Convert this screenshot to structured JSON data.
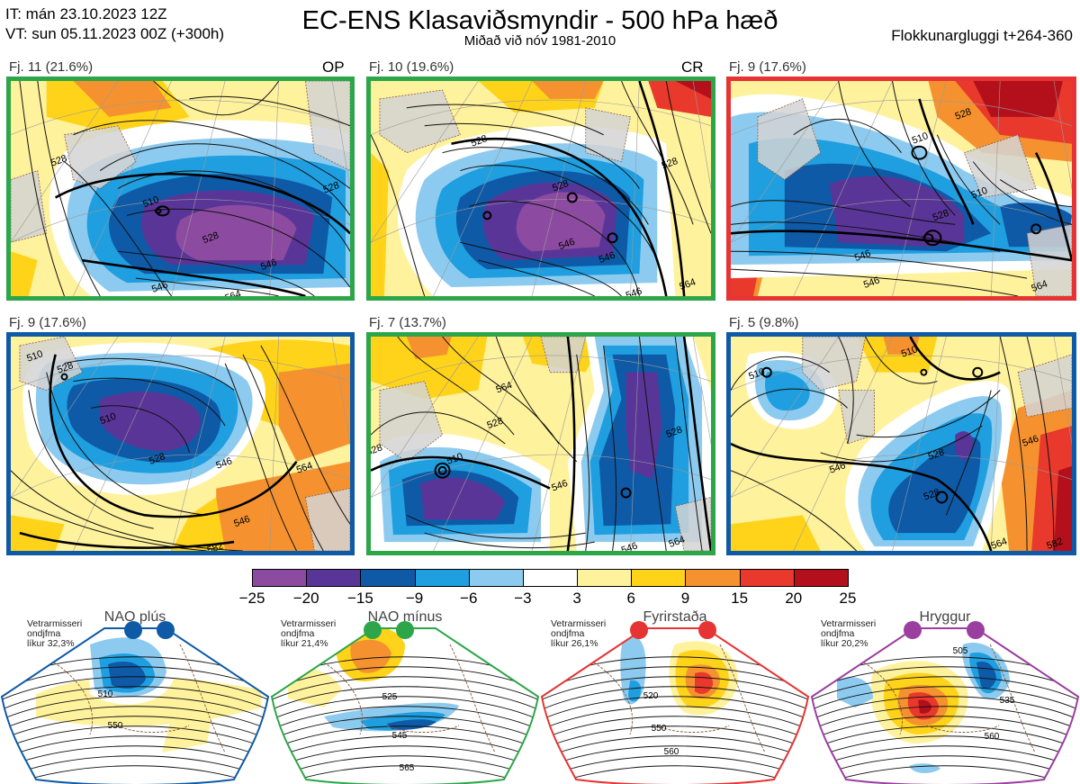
{
  "header": {
    "init_time": "IT: mán 23.10.2023 12Z",
    "valid_time": "VT: sun 05.11.2023 00Z  (+300h)",
    "title": "EC-ENS Klasaviðsmyndir - 500 hPa hæð",
    "subtitle": "Miðað við nóv 1981-2010",
    "window": "Flokkunargluggi t+264-360"
  },
  "panels": [
    {
      "label": "Fj. 11 (21.6%)",
      "tag": "OP",
      "border_color": "#2ca649",
      "contour_labels": [
        "528",
        "510",
        "528",
        "546",
        "528",
        "546",
        "564"
      ]
    },
    {
      "label": "Fj. 10 (19.6%)",
      "tag": "CR",
      "border_color": "#2ca649",
      "contour_labels": [
        "528",
        "528",
        "546",
        "546",
        "528",
        "546",
        "564"
      ]
    },
    {
      "label": "Fj. 9 (17.6%)",
      "tag": "",
      "border_color": "#e63333",
      "contour_labels": [
        "510",
        "528",
        "546",
        "510",
        "528",
        "546",
        "564"
      ]
    },
    {
      "label": "Fj. 9 (17.6%)",
      "tag": "",
      "border_color": "#0e5aa7",
      "contour_labels": [
        "510",
        "528",
        "510",
        "528",
        "546",
        "546",
        "564",
        "582"
      ]
    },
    {
      "label": "Fj. 7 (13.7%)",
      "tag": "",
      "border_color": "#2ca649",
      "contour_labels": [
        "528",
        "510",
        "528",
        "546",
        "528",
        "546",
        "564",
        "564"
      ]
    },
    {
      "label": "Fj. 5 (9.8%)",
      "tag": "",
      "border_color": "#0e5aa7",
      "contour_labels": [
        "510",
        "510",
        "528",
        "546",
        "528",
        "546",
        "564",
        "582"
      ]
    }
  ],
  "colorbar": {
    "colors": [
      "#8c4ba0",
      "#5a3598",
      "#0e5aa7",
      "#1f9ee0",
      "#8ccbef",
      "#ffffff",
      "#fff29c",
      "#ffd31a",
      "#f5922f",
      "#e8392c",
      "#b3101b"
    ],
    "ticks": [
      "−25",
      "−20",
      "−15",
      "−9",
      "−6",
      "−3",
      "3",
      "6",
      "9",
      "15",
      "20",
      "25"
    ]
  },
  "regimes": [
    {
      "name": "NAO plús",
      "stat_line1": "Vetrarmisseri",
      "stat_line2": "ondjfma",
      "stat_line3": "líkur 32,3%",
      "color": "#0e5aa7",
      "contour_labels": [
        "510",
        "550"
      ]
    },
    {
      "name": "NAO mínus",
      "stat_line1": "Vetrarmisseri",
      "stat_line2": "ondjfma",
      "stat_line3": "líkur 21,4%",
      "color": "#2ca649",
      "contour_labels": [
        "525",
        "545",
        "565"
      ]
    },
    {
      "name": "Fyrirstaða",
      "stat_line1": "Vetrarmisseri",
      "stat_line2": "ondjfma",
      "stat_line3": "líkur 26,1%",
      "color": "#e63333",
      "contour_labels": [
        "520",
        "550",
        "560"
      ]
    },
    {
      "name": "Hryggur",
      "stat_line1": "Vetrarmisseri",
      "stat_line2": "ondjfma",
      "stat_line3": "líkur 20,2%",
      "color": "#9a3ea0",
      "contour_labels": [
        "505",
        "535",
        "560"
      ]
    }
  ]
}
